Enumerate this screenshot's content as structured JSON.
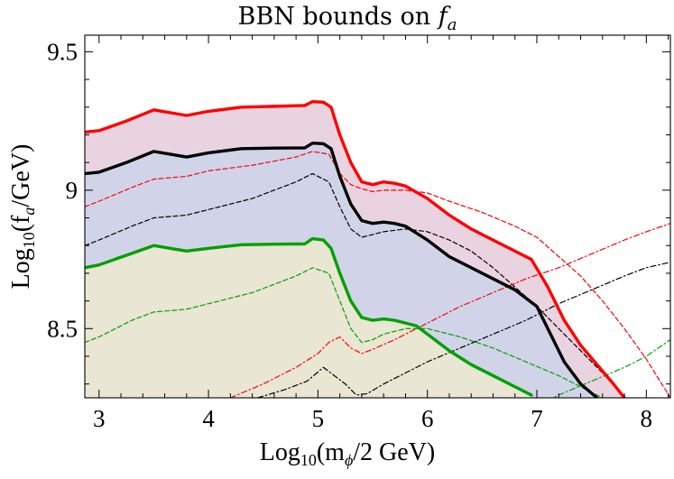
{
  "chart_data": {
    "type": "line",
    "title": "BBN bounds on ",
    "title_symbol": "f",
    "title_symbol_sub": "a",
    "xlabel": "Log",
    "xlabel_sub": "10",
    "xlabel_rest": "(m",
    "xlabel_rest_sub": "ϕ",
    "xlabel_tail": "/2 GeV)",
    "ylabel": "Log",
    "ylabel_sub": "10",
    "ylabel_rest": "(f",
    "ylabel_rest_sub": "a",
    "ylabel_tail": "/GeV)",
    "xlim": [
      2.87,
      8.22
    ],
    "ylim": [
      8.25,
      9.56
    ],
    "xticks": [
      3,
      4,
      5,
      6,
      7,
      8
    ],
    "xtick_labels": [
      "3",
      "4",
      "5",
      "6",
      "7",
      "8"
    ],
    "yticks": [
      8.5,
      9.0,
      9.5
    ],
    "ytick_labels": [
      "8.5",
      "9",
      "9.5"
    ],
    "grid": false,
    "legend": "none",
    "series": [
      {
        "color": "#ff0000",
        "style": "solid",
        "width": 3.4,
        "fill": "#ead3e0",
        "x": [
          2.87,
          3.0,
          3.25,
          3.5,
          3.65,
          3.8,
          4.0,
          4.3,
          4.6,
          4.88,
          4.95,
          5.05,
          5.12,
          5.2,
          5.3,
          5.4,
          5.5,
          5.6,
          5.7,
          5.8,
          6.0,
          6.2,
          6.4,
          6.6,
          6.8,
          6.95,
          7.1,
          7.25,
          7.4,
          7.55,
          7.7,
          7.8
        ],
        "y": [
          9.21,
          9.215,
          9.25,
          9.29,
          9.28,
          9.27,
          9.285,
          9.3,
          9.303,
          9.306,
          9.32,
          9.318,
          9.3,
          9.2,
          9.1,
          9.03,
          9.02,
          9.03,
          9.025,
          9.015,
          8.97,
          8.91,
          8.86,
          8.82,
          8.78,
          8.75,
          8.65,
          8.53,
          8.44,
          8.37,
          8.3,
          8.25
        ]
      },
      {
        "color": "#000000",
        "style": "solid",
        "width": 3.4,
        "fill": "#d1d4e9",
        "x": [
          2.87,
          3.0,
          3.25,
          3.5,
          3.65,
          3.8,
          4.0,
          4.3,
          4.6,
          4.88,
          4.95,
          5.05,
          5.12,
          5.2,
          5.3,
          5.4,
          5.5,
          5.6,
          5.7,
          5.8,
          6.0,
          6.2,
          6.4,
          6.6,
          6.8,
          6.9,
          7.0,
          7.1,
          7.25,
          7.4,
          7.55
        ],
        "y": [
          9.06,
          9.065,
          9.1,
          9.14,
          9.13,
          9.12,
          9.135,
          9.15,
          9.152,
          9.153,
          9.17,
          9.168,
          9.15,
          9.05,
          8.95,
          8.89,
          8.88,
          8.885,
          8.88,
          8.87,
          8.82,
          8.76,
          8.72,
          8.68,
          8.64,
          8.61,
          8.58,
          8.5,
          8.38,
          8.3,
          8.25
        ]
      },
      {
        "color": "#00a000",
        "style": "solid",
        "width": 3.4,
        "fill": "#e9e6d4",
        "x": [
          2.87,
          3.0,
          3.25,
          3.5,
          3.65,
          3.8,
          4.0,
          4.3,
          4.6,
          4.88,
          4.95,
          5.05,
          5.12,
          5.2,
          5.3,
          5.4,
          5.5,
          5.6,
          5.7,
          5.8,
          5.9,
          6.0,
          6.2,
          6.4,
          6.6,
          6.8,
          6.95
        ],
        "y": [
          8.72,
          8.73,
          8.765,
          8.8,
          8.79,
          8.78,
          8.79,
          8.803,
          8.805,
          8.806,
          8.825,
          8.82,
          8.79,
          8.7,
          8.6,
          8.54,
          8.53,
          8.535,
          8.53,
          8.52,
          8.51,
          8.48,
          8.42,
          8.37,
          8.33,
          8.29,
          8.26
        ]
      },
      {
        "color": "#ff0000",
        "style": "dashed",
        "width": 1.2,
        "x": [
          2.87,
          3.0,
          3.3,
          3.5,
          3.8,
          4.0,
          4.4,
          4.8,
          4.95,
          5.1,
          5.2,
          5.3,
          5.4,
          5.5,
          5.6,
          5.8,
          6.0,
          6.2,
          6.5,
          6.8,
          7.0,
          7.2,
          7.4,
          7.6,
          7.8,
          8.0,
          8.22
        ],
        "y": [
          8.94,
          8.96,
          9.01,
          9.04,
          9.05,
          9.07,
          9.09,
          9.12,
          9.14,
          9.13,
          9.06,
          9.02,
          9.005,
          8.995,
          9.0,
          9.0,
          8.99,
          8.96,
          8.92,
          8.87,
          8.83,
          8.76,
          8.69,
          8.6,
          8.5,
          8.39,
          8.25
        ]
      },
      {
        "color": "#000000",
        "style": "dashed",
        "width": 1.2,
        "x": [
          2.87,
          3.0,
          3.3,
          3.5,
          3.8,
          4.0,
          4.4,
          4.8,
          4.95,
          5.1,
          5.2,
          5.3,
          5.4,
          5.5,
          5.6,
          5.8,
          6.0,
          6.2,
          6.4,
          6.6,
          6.8,
          7.0,
          7.2,
          7.4,
          7.6,
          7.8,
          8.0,
          8.22
        ],
        "y": [
          8.8,
          8.82,
          8.87,
          8.9,
          8.91,
          8.93,
          8.97,
          9.03,
          9.06,
          9.03,
          8.94,
          8.86,
          8.83,
          8.84,
          8.85,
          8.86,
          8.85,
          8.82,
          8.78,
          8.72,
          8.65,
          8.58,
          8.5,
          8.42,
          8.34,
          8.25,
          8.15,
          8.03
        ]
      },
      {
        "color": "#00a000",
        "style": "dashed",
        "width": 1.2,
        "x": [
          2.87,
          3.0,
          3.3,
          3.5,
          3.8,
          4.0,
          4.4,
          4.8,
          4.95,
          5.1,
          5.2,
          5.3,
          5.4,
          5.5,
          5.6,
          5.8,
          6.0,
          6.3,
          6.6,
          6.9,
          7.2,
          7.5,
          7.8,
          8.0,
          8.22
        ],
        "y": [
          8.45,
          8.47,
          8.53,
          8.56,
          8.57,
          8.59,
          8.63,
          8.69,
          8.72,
          8.7,
          8.6,
          8.5,
          8.45,
          8.46,
          8.48,
          8.5,
          8.5,
          8.47,
          8.43,
          8.38,
          8.33,
          8.27,
          8.21,
          8.15,
          8.08
        ]
      },
      {
        "color": "#ff0000",
        "style": "dashdot",
        "width": 1.2,
        "x": [
          4.2,
          4.5,
          4.8,
          5.0,
          5.1,
          5.2,
          5.3,
          5.4,
          5.5,
          5.7,
          6.0,
          6.3,
          6.6,
          6.9,
          7.2,
          7.5,
          7.8,
          8.0,
          8.22
        ],
        "y": [
          8.25,
          8.3,
          8.36,
          8.41,
          8.45,
          8.47,
          8.43,
          8.41,
          8.425,
          8.46,
          8.52,
          8.58,
          8.63,
          8.68,
          8.72,
          8.77,
          8.82,
          8.85,
          8.88
        ]
      },
      {
        "color": "#000000",
        "style": "dashdot",
        "width": 1.2,
        "x": [
          4.45,
          4.7,
          4.9,
          5.05,
          5.15,
          5.25,
          5.35,
          5.45,
          5.6,
          5.8,
          6.0,
          6.3,
          6.6,
          6.9,
          7.2,
          7.5,
          7.8,
          8.0,
          8.22
        ],
        "y": [
          8.25,
          8.28,
          8.31,
          8.36,
          8.33,
          8.3,
          8.26,
          8.265,
          8.3,
          8.34,
          8.38,
          8.43,
          8.48,
          8.53,
          8.59,
          8.64,
          8.69,
          8.72,
          8.74
        ]
      },
      {
        "color": "#00a000",
        "style": "dashdot",
        "width": 1.2,
        "x": [
          6.9,
          7.2,
          7.5,
          7.8,
          8.0,
          8.22
        ],
        "y": [
          8.2,
          8.26,
          8.31,
          8.36,
          8.4,
          8.46
        ]
      }
    ]
  }
}
